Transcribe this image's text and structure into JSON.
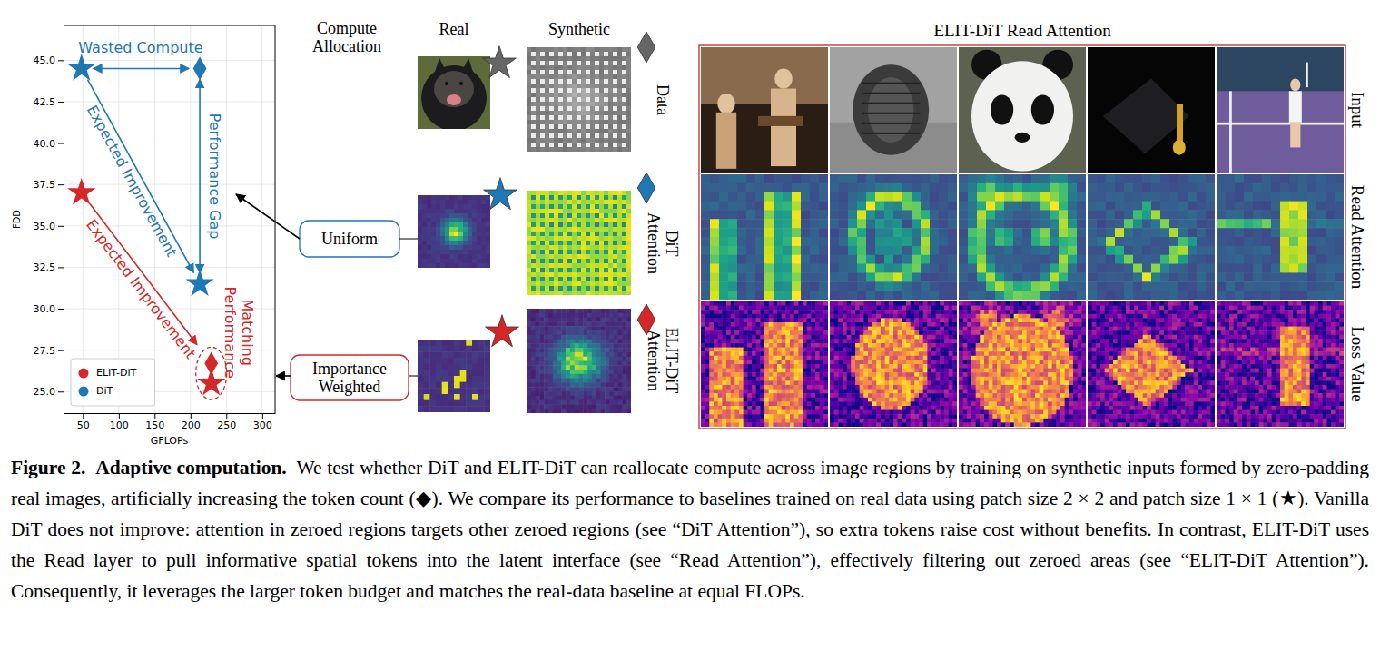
{
  "chart_data": {
    "type": "scatter",
    "xlabel": "GFLOPs",
    "ylabel": "FDD",
    "xlim": [
      23,
      318
    ],
    "xticks": [
      50,
      100,
      150,
      200,
      250,
      300
    ],
    "ylim": [
      23.7,
      47.1
    ],
    "yticks": [
      {
        "value": 25,
        "label": "25.0"
      },
      27.5,
      {
        "value": 30,
        "label": "30.0"
      },
      32.5,
      {
        "value": 35,
        "label": "35.0"
      },
      37.5,
      {
        "value": 40,
        "label": "40.0"
      },
      42.5,
      {
        "value": 45,
        "label": "45.0"
      }
    ],
    "grid": true,
    "legend": "lower left",
    "series": [
      {
        "name": "ELIT-DiT",
        "color": "#d62728",
        "marker": "star",
        "x": [
          48,
          229
        ],
        "values": [
          37.0,
          25.5
        ]
      },
      {
        "name": "ELIT-DiT",
        "color": "#d62728",
        "marker": "diamond",
        "x": [
          229
        ],
        "values": [
          26.7
        ]
      },
      {
        "name": "DiT",
        "color": "#1f77b4",
        "marker": "star",
        "x": [
          48,
          213
        ],
        "values": [
          44.5,
          31.5
        ]
      },
      {
        "name": "DiT",
        "color": "#1f77b4",
        "marker": "diamond",
        "x": [
          213
        ],
        "values": [
          44.5
        ]
      }
    ],
    "annotations": [
      {
        "text": "Wasted Compute",
        "color": "#1f77b4"
      },
      {
        "text": "Performance Gap",
        "color": "#1f77b4"
      },
      {
        "text": "Expected Improvement",
        "color": "#1f77b4"
      },
      {
        "text": "Expected Improvement",
        "color": "#d62728"
      },
      {
        "text": "Matching Performance",
        "color": "#d62728"
      }
    ]
  },
  "figure": {
    "compute_allocation": "Compute Allocation",
    "columns": [
      "Real",
      "Synthetic"
    ],
    "rows": [
      "Data",
      "DiT Attention",
      "ELIT-DiT Attention"
    ],
    "boxes": [
      "Uniform",
      "Importance Weighted"
    ],
    "read_panel": {
      "title": "ELIT-DiT Read Attention",
      "rows": [
        "Input",
        "Read Attention",
        "Loss Value"
      ]
    },
    "caption": {
      "label": "Figure 2.",
      "title": "Adaptive computation.",
      "text": "We test whether DiT and ELIT-DiT can reallocate compute across image regions by training on synthetic inputs formed by zero-padding real images, artificially increasing the token count (◆). We compare its performance to baselines trained on real data using patch size 2 × 2 and patch size 1 × 1 (★). Vanilla DiT does not improve: attention in zeroed regions targets other zeroed regions (see “DiT Attention”), so extra tokens raise cost without benefits. In contrast, ELIT-DiT uses the Read layer to pull informative spatial tokens into the latent interface (see “Read Attention”), effectively filtering out zeroed areas (see “ELIT-DiT Attention”). Consequently, it leverages the larger token budget and matches the real-data baseline at equal FLOPs."
    }
  }
}
